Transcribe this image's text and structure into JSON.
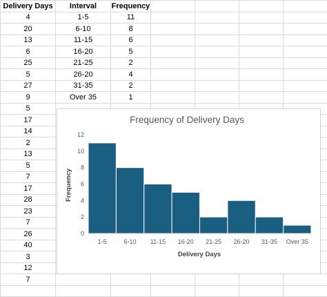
{
  "sheet": {
    "headers": [
      "Delivery Days",
      "Interval",
      "Frequency"
    ],
    "delivery_days": [
      "4",
      "20",
      "13",
      "6",
      "25",
      "5",
      "27",
      "9",
      "5",
      "17",
      "14",
      "2",
      "13",
      "5",
      "7",
      "17",
      "28",
      "23",
      "7",
      "26",
      "40",
      "3",
      "12",
      "7"
    ],
    "intervals": [
      "1-5",
      "6-10",
      "11-15",
      "16-20",
      "21-25",
      "26-20",
      "31-35",
      "Over 35"
    ],
    "frequencies": [
      "11",
      "8",
      "6",
      "5",
      "2",
      "4",
      "2",
      "1"
    ]
  },
  "chart_data": {
    "type": "bar",
    "title": "Frequency of Delivery Days",
    "xlabel": "Delivery Days",
    "ylabel": "Frequency",
    "categories": [
      "1-5",
      "6-10",
      "11-15",
      "16-20",
      "21-25",
      "26-20",
      "31-35",
      "Over 35"
    ],
    "values": [
      11,
      8,
      6,
      5,
      2,
      4,
      2,
      1
    ],
    "ylim": [
      0,
      12
    ],
    "yticks": [
      0,
      2,
      4,
      6,
      8,
      10,
      12
    ],
    "bar_color": "#1a5e82",
    "grid": false,
    "legend": "none"
  }
}
